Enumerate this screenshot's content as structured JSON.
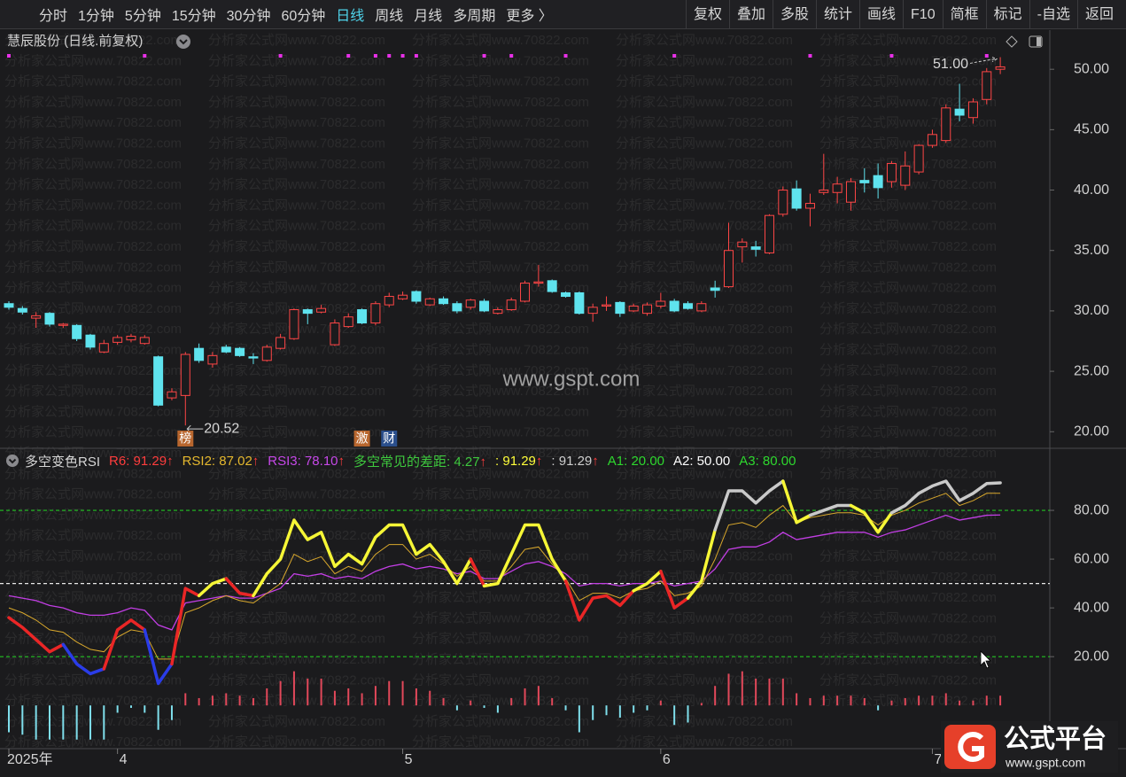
{
  "toolbar": {
    "left": [
      "分时",
      "1分钟",
      "5分钟",
      "15分钟",
      "30分钟",
      "60分钟",
      "日线",
      "周线",
      "月线",
      "多周期",
      "更多 〉"
    ],
    "active": 6,
    "right": [
      "复权",
      "叠加",
      "多股",
      "统计",
      "画线",
      "F10",
      "简框",
      "标记",
      "-自选",
      "返回"
    ]
  },
  "watermark": "www.gspt.com",
  "watermark_text": "分析家公式网www.70822.com",
  "logo": {
    "title": "公式平台",
    "url": "www.gspt.com"
  },
  "chart_data": [
    {
      "type": "candlestick",
      "title": "慧辰股份 (日线.前复权)",
      "categories": [
        "2025年",
        null,
        null,
        null,
        null,
        null,
        null,
        null,
        "4",
        null,
        null,
        null,
        null,
        null,
        null,
        null,
        null,
        null,
        null,
        null,
        null,
        null,
        null,
        null,
        null,
        null,
        null,
        null,
        null,
        "5",
        null,
        null,
        null,
        null,
        null,
        null,
        null,
        null,
        null,
        null,
        null,
        null,
        null,
        null,
        null,
        null,
        null,
        null,
        "6",
        null,
        null,
        null,
        null,
        null,
        null,
        null,
        null,
        null,
        null,
        null,
        null,
        null,
        null,
        null,
        null,
        null,
        null,
        null,
        "7",
        null,
        null,
        null,
        null,
        null
      ],
      "open": [
        30.6,
        30.2,
        29.4,
        29.8,
        28.8,
        28.8,
        28.0,
        26.6,
        27.4,
        27.6,
        27.3,
        26.2,
        22.8,
        23.0,
        26.9,
        25.6,
        27.0,
        26.9,
        26.2,
        25.9,
        26.9,
        27.7,
        30.1,
        29.9,
        27.2,
        28.7,
        30.1,
        29.0,
        30.5,
        31.0,
        31.6,
        30.5,
        31.0,
        30.6,
        30.3,
        30.8,
        29.8,
        30.1,
        30.8,
        32.3,
        32.5,
        31.5,
        31.5,
        29.8,
        30.4,
        30.7,
        30.0,
        29.8,
        30.4,
        30.8,
        30.6,
        30.0,
        31.9,
        32.0,
        35.3,
        35.3,
        34.8,
        38.0,
        40.1,
        38.5,
        39.8,
        39.8,
        39.0,
        40.8,
        41.2,
        40.7,
        40.4,
        41.5,
        43.7,
        44.1,
        46.7,
        46.0,
        47.5,
        50.0
      ],
      "high": [
        30.8,
        30.4,
        29.9,
        29.9,
        29.0,
        28.9,
        28.1,
        27.6,
        28.0,
        28.1,
        28.0,
        26.3,
        23.6,
        26.6,
        27.3,
        26.6,
        27.2,
        27.0,
        26.5,
        27.2,
        28.1,
        30.2,
        30.2,
        30.5,
        29.3,
        29.8,
        30.2,
        30.8,
        31.5,
        31.6,
        31.7,
        31.1,
        31.2,
        30.8,
        31.0,
        31.0,
        30.3,
        31.1,
        32.5,
        33.8,
        32.6,
        31.6,
        31.6,
        30.6,
        31.2,
        30.8,
        30.6,
        30.7,
        31.5,
        31.0,
        30.8,
        30.8,
        32.5,
        37.3,
        36.0,
        35.8,
        38.0,
        40.3,
        40.8,
        39.7,
        43.0,
        41.1,
        41.0,
        41.8,
        42.2,
        42.4,
        43.2,
        43.8,
        45.0,
        47.1,
        48.8,
        47.6,
        50.1,
        51.0
      ],
      "low": [
        30.1,
        29.7,
        28.6,
        28.7,
        28.6,
        27.5,
        26.8,
        26.5,
        27.2,
        27.4,
        27.2,
        22.1,
        22.6,
        20.52,
        25.7,
        25.3,
        26.5,
        26.2,
        25.6,
        25.8,
        26.8,
        27.6,
        28.9,
        29.8,
        27.1,
        28.6,
        28.9,
        28.8,
        30.3,
        30.9,
        30.6,
        30.4,
        30.5,
        29.8,
        30.1,
        29.9,
        29.7,
        30.0,
        30.7,
        32.0,
        31.5,
        31.1,
        29.7,
        29.1,
        30.0,
        29.5,
        29.9,
        29.6,
        30.2,
        29.9,
        30.1,
        29.9,
        31.1,
        31.9,
        34.0,
        34.5,
        34.7,
        37.8,
        38.3,
        37.0,
        39.6,
        38.9,
        38.3,
        39.8,
        39.3,
        40.2,
        40.0,
        41.3,
        43.5,
        43.9,
        45.7,
        45.5,
        47.1,
        49.6
      ],
      "close": [
        30.3,
        29.9,
        29.6,
        28.9,
        28.9,
        27.7,
        27.0,
        27.3,
        27.8,
        27.9,
        27.8,
        22.2,
        23.3,
        26.4,
        25.9,
        26.3,
        26.6,
        26.3,
        26.1,
        27.0,
        27.8,
        30.1,
        29.8,
        30.2,
        29.0,
        29.5,
        29.0,
        30.6,
        31.2,
        31.3,
        30.8,
        31.0,
        30.6,
        30.0,
        30.9,
        30.0,
        30.1,
        30.9,
        32.3,
        32.4,
        31.6,
        31.2,
        29.8,
        30.3,
        30.5,
        29.8,
        30.4,
        30.5,
        30.8,
        30.0,
        30.2,
        30.6,
        31.7,
        35.0,
        35.7,
        35.1,
        37.9,
        40.0,
        38.5,
        38.9,
        40.0,
        40.5,
        40.7,
        40.6,
        40.2,
        42.2,
        42.0,
        43.7,
        44.6,
        46.8,
        46.2,
        47.3,
        49.8,
        50.2
      ],
      "up_color": "#ff4646",
      "down_color": "#5fe3ee",
      "ylim": [
        18.7,
        51.7
      ],
      "yticks": [
        {
          "value": 20,
          "label": "20.00"
        },
        {
          "value": 25,
          "label": "25.00"
        },
        {
          "value": 30,
          "label": "30.00"
        },
        {
          "value": 35,
          "label": "35.00"
        },
        {
          "value": 40,
          "label": "40.00"
        },
        {
          "value": 45,
          "label": "45.00"
        },
        {
          "value": 50,
          "label": "50.00"
        }
      ],
      "low_marker": "20.52",
      "high_marker": "51.00",
      "events": [
        {
          "index": 13,
          "label": "榜",
          "color": "#b8662e"
        },
        {
          "index": 26,
          "label": "激",
          "color": "#b8662e"
        },
        {
          "index": 28,
          "label": "财",
          "color": "#2b4f8c"
        }
      ],
      "signals": [
        0,
        10,
        20,
        25,
        27,
        28,
        29,
        30,
        35,
        37,
        41,
        49,
        59,
        65,
        72
      ],
      "signal_color": "#e830e8"
    },
    {
      "type": "indicator",
      "title": "多空变色RSI",
      "series": [
        {
          "values": [
            36,
            32,
            27,
            22,
            25,
            17,
            13,
            15,
            31,
            35,
            31,
            9,
            17,
            48,
            45,
            50,
            52,
            46,
            45,
            54,
            60,
            76,
            68,
            71,
            57,
            62,
            58,
            69,
            74,
            74,
            62,
            66,
            59,
            50,
            60,
            49,
            50,
            62,
            74,
            74,
            60,
            51,
            35,
            44,
            45,
            41,
            47,
            50,
            55,
            40,
            44,
            51,
            72,
            88,
            88,
            83,
            88,
            92,
            75,
            78,
            80,
            82,
            82,
            79,
            71,
            79,
            82,
            87,
            90,
            92,
            84,
            87,
            91,
            91.29
          ],
          "width": 3.5,
          "band_colors": [
            "#2a3ce8",
            "#ea2626",
            "#f6f636",
            "#c9c9c9"
          ]
        },
        {
          "values": [
            40,
            38,
            35,
            31,
            30,
            26,
            23,
            22,
            28,
            31,
            30,
            19,
            19,
            38,
            40,
            43,
            45,
            43,
            42,
            46,
            50,
            62,
            59,
            61,
            54,
            57,
            55,
            62,
            66,
            66,
            60,
            62,
            58,
            53,
            57,
            51,
            51,
            57,
            64,
            65,
            58,
            52,
            43,
            46,
            46,
            44,
            47,
            48,
            51,
            45,
            46,
            49,
            60,
            74,
            75,
            73,
            78,
            82,
            75,
            77,
            78,
            79,
            79,
            78,
            74,
            78,
            80,
            83,
            85,
            87,
            82,
            84,
            87,
            87.02
          ],
          "color": "#d9a82c",
          "width": 1
        },
        {
          "values": [
            45,
            44,
            43,
            41,
            40,
            38,
            37,
            37,
            38,
            40,
            39,
            33,
            31,
            42,
            43,
            44,
            45,
            44,
            44,
            46,
            48,
            54,
            53,
            54,
            52,
            53,
            52,
            55,
            57,
            58,
            56,
            57,
            56,
            54,
            55,
            52,
            52,
            55,
            58,
            59,
            57,
            54,
            49,
            50,
            50,
            49,
            50,
            50,
            51,
            49,
            50,
            51,
            56,
            64,
            65,
            65,
            67,
            71,
            68,
            69,
            70,
            71,
            71,
            71,
            69,
            71,
            72,
            74,
            76,
            78,
            76,
            77,
            78,
            78.1
          ],
          "color": "#c23ee4",
          "width": 1.3
        }
      ],
      "histogram": {
        "values": [
          -11,
          -12,
          -14,
          -14,
          -14,
          -14,
          -14,
          -14,
          -3,
          -1,
          -3,
          -10,
          -6,
          5,
          3,
          4,
          5,
          4,
          3,
          7,
          10,
          14,
          11,
          11,
          6,
          7,
          5,
          8,
          10,
          10,
          7,
          6,
          3,
          -2,
          2,
          -1,
          -3,
          3,
          7,
          8,
          3,
          -2,
          -11,
          -6,
          -4,
          -5,
          -3,
          -2,
          2,
          -8,
          -7,
          1,
          8,
          13,
          14,
          11,
          11,
          11,
          5,
          3,
          4,
          4,
          4,
          3,
          -2,
          2,
          3,
          4,
          4,
          5,
          2,
          2,
          4,
          4
        ],
        "up_color": "#e2485a",
        "down_color": "#7fdfec"
      },
      "reference_lines": [
        {
          "value": 20,
          "color": "#22c422"
        },
        {
          "value": 50,
          "color": "#e8e8e8"
        },
        {
          "value": 80,
          "color": "#22c422"
        }
      ],
      "legend": [
        {
          "text": "R6: 91.29",
          "arrow": "↑",
          "color": "#ff3d3d"
        },
        {
          "text": "RSI2: 87.02",
          "arrow": "↑",
          "color": "#e5b82e"
        },
        {
          "text": "RSI3: 78.10",
          "arrow": "↑",
          "color": "#c648e8"
        },
        {
          "text": "多空常见的差距: 4.27",
          "arrow": "↑",
          "color": "#3ec83e"
        },
        {
          "text": ": 91.29",
          "arrow": "↑",
          "color": "#ffff3a"
        },
        {
          "text": ": 91.29",
          "arrow": "↑",
          "color": "#cfcfcf"
        },
        {
          "text": "A1: 20.00",
          "color": "#2ed82e"
        },
        {
          "text": "A2: 50.00",
          "color": "#ffffff"
        },
        {
          "text": "A3: 80.00",
          "color": "#2ed82e"
        }
      ],
      "arrow_color": "#ff3d3d",
      "ylim": [
        -17,
        104
      ],
      "yticks": [
        {
          "value": 20,
          "label": "20.00"
        },
        {
          "value": 40,
          "label": "40.00"
        },
        {
          "value": 60,
          "label": "60.00"
        },
        {
          "value": 80,
          "label": "80.00"
        }
      ]
    }
  ]
}
